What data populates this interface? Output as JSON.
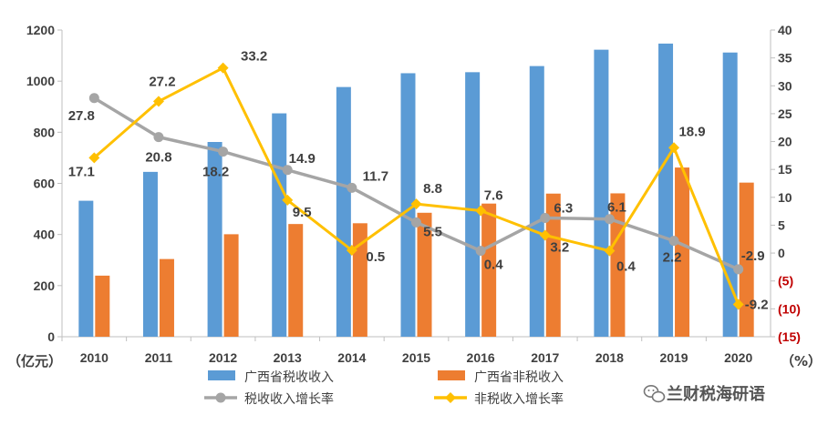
{
  "chart_data": {
    "type": "bar",
    "categories": [
      "2010",
      "2011",
      "2012",
      "2013",
      "2014",
      "2015",
      "2016",
      "2017",
      "2018",
      "2019",
      "2020"
    ],
    "left_axis": {
      "unit": "（亿元）",
      "ylim": [
        0,
        1200
      ],
      "ticks": [
        "0",
        "200",
        "400",
        "600",
        "800",
        "1000",
        "1200"
      ]
    },
    "right_axis": {
      "unit": "（%）",
      "ylim": [
        -15,
        40
      ],
      "ticks": [
        "(15)",
        "(10)",
        "(5)",
        "0",
        "5",
        "10",
        "15",
        "20",
        "25",
        "30",
        "35",
        "40"
      ]
    },
    "series": [
      {
        "name": "广西省税收收入",
        "kind": "bar",
        "axis": "left",
        "color": "#5b9bd5",
        "values": [
          532,
          645,
          762,
          874,
          977,
          1031,
          1035,
          1059,
          1123,
          1147,
          1112
        ]
      },
      {
        "name": "广西省非税收入",
        "kind": "bar",
        "axis": "left",
        "color": "#ed7d31",
        "values": [
          239,
          304,
          401,
          441,
          444,
          485,
          521,
          560,
          561,
          662,
          603
        ]
      },
      {
        "name": "税收收入增长率",
        "kind": "line",
        "axis": "right",
        "color": "#a5a5a5",
        "marker": "circle",
        "values": [
          27.8,
          20.8,
          18.2,
          14.9,
          11.7,
          5.5,
          0.4,
          6.3,
          6.1,
          2.2,
          -2.9
        ],
        "labels": [
          "27.8",
          "20.8",
          "18.2",
          "14.9",
          "11.7",
          "5.5",
          "0.4",
          "6.3",
          "6.1",
          "2.2",
          "-2.9"
        ]
      },
      {
        "name": "非税收入增长率",
        "kind": "line",
        "axis": "right",
        "color": "#ffc000",
        "marker": "diamond",
        "values": [
          17.1,
          27.2,
          33.2,
          9.5,
          0.5,
          8.8,
          7.6,
          3.2,
          0.4,
          18.9,
          -9.2
        ],
        "labels": [
          "17.1",
          "27.2",
          "33.2",
          "9.5",
          "0.5",
          "8.8",
          "7.6",
          "3.2",
          "0.4",
          "18.9",
          "-9.2"
        ]
      }
    ],
    "legend_position": "bottom",
    "grid": false
  },
  "watermark": {
    "icon": "wechat-icon",
    "text": "兰财税海研语"
  }
}
